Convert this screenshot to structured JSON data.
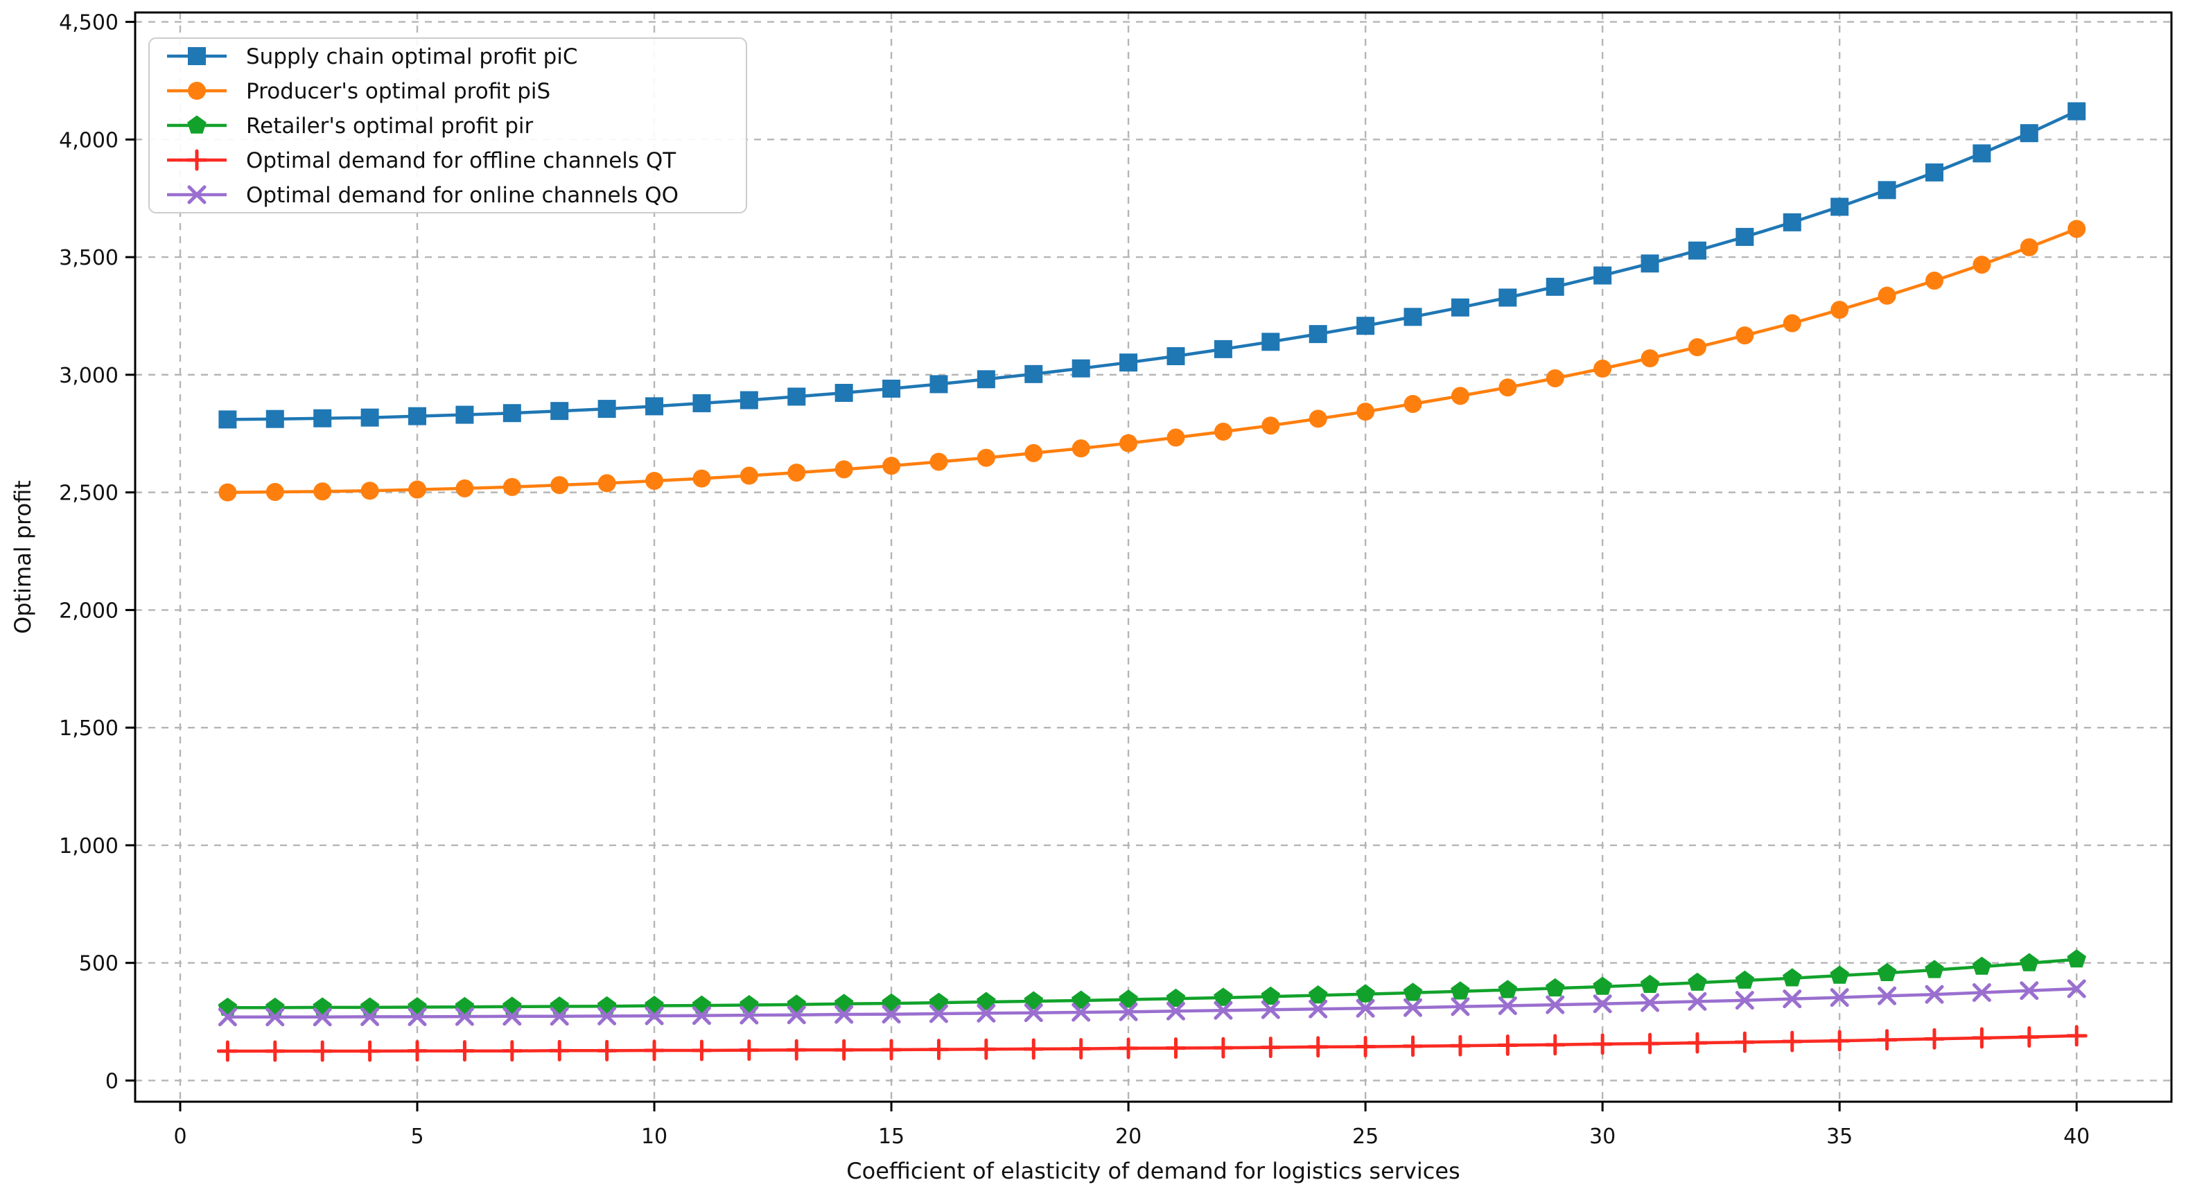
{
  "chart_data": {
    "type": "line",
    "title": "",
    "xlabel": "Coefficient of elasticity of demand for logistics services",
    "ylabel": "Optimal profit",
    "x": [
      1,
      2,
      3,
      4,
      5,
      6,
      7,
      8,
      9,
      10,
      11,
      12,
      13,
      14,
      15,
      16,
      17,
      18,
      19,
      20,
      21,
      22,
      23,
      24,
      25,
      26,
      27,
      28,
      29,
      30,
      31,
      32,
      33,
      34,
      35,
      36,
      37,
      38,
      39,
      40
    ],
    "series": [
      {
        "name": "Supply chain optimal profit piC",
        "color": "#1f77b4",
        "marker": "square",
        "values": [
          2810,
          2812,
          2815,
          2818,
          2824,
          2830,
          2837,
          2846,
          2855,
          2866,
          2879,
          2892,
          2907,
          2923,
          2941,
          2960,
          2981,
          3003,
          3027,
          3052,
          3079,
          3109,
          3140,
          3173,
          3208,
          3246,
          3286,
          3328,
          3374,
          3422,
          3473,
          3528,
          3586,
          3648,
          3714,
          3785,
          3860,
          3941,
          4027,
          4120
        ]
      },
      {
        "name": "Producer's optimal profit piS",
        "color": "#ff7f0e",
        "marker": "circle",
        "values": [
          2500,
          2502,
          2504,
          2507,
          2512,
          2517,
          2523,
          2531,
          2539,
          2549,
          2559,
          2571,
          2584,
          2598,
          2613,
          2630,
          2647,
          2667,
          2687,
          2709,
          2733,
          2758,
          2784,
          2813,
          2843,
          2876,
          2910,
          2946,
          2985,
          3026,
          3070,
          3117,
          3167,
          3219,
          3276,
          3336,
          3400,
          3468,
          3542,
          3620
        ]
      },
      {
        "name": "Retailer's optimal profit pir",
        "color": "#12a22b",
        "marker": "pentagon",
        "values": [
          310,
          310,
          311,
          311,
          312,
          313,
          314,
          315,
          316,
          318,
          319,
          321,
          323,
          326,
          328,
          331,
          334,
          337,
          340,
          344,
          348,
          352,
          357,
          362,
          367,
          373,
          379,
          385,
          392,
          399,
          407,
          416,
          425,
          435,
          446,
          457,
          470,
          484,
          499,
          515
        ]
      },
      {
        "name": "Optimal demand for offline channels QT",
        "color": "#fa2a22",
        "marker": "plus",
        "values": [
          125,
          125,
          125,
          125,
          126,
          126,
          126,
          127,
          127,
          128,
          128,
          129,
          130,
          130,
          131,
          132,
          133,
          134,
          135,
          137,
          138,
          139,
          141,
          143,
          144,
          146,
          148,
          150,
          152,
          155,
          157,
          160,
          163,
          166,
          169,
          173,
          177,
          181,
          185,
          190
        ]
      },
      {
        "name": "Optimal demand for online channels QO",
        "color": "#9a6fcf",
        "marker": "x",
        "values": [
          270,
          270,
          270,
          271,
          271,
          272,
          273,
          273,
          274,
          275,
          276,
          278,
          279,
          281,
          282,
          284,
          286,
          288,
          290,
          292,
          295,
          298,
          301,
          304,
          307,
          310,
          314,
          318,
          322,
          326,
          331,
          336,
          341,
          347,
          353,
          360,
          366,
          374,
          382,
          390
        ]
      }
    ],
    "xlim": [
      -0.95,
      42.0
    ],
    "ylim": [
      -90,
      4540
    ],
    "xticks": [
      0,
      5,
      10,
      15,
      20,
      25,
      30,
      35,
      40
    ],
    "xtick_labels": [
      "0",
      "5",
      "10",
      "15",
      "20",
      "25",
      "30",
      "35",
      "40"
    ],
    "yticks": [
      0,
      500,
      1000,
      1500,
      2000,
      2500,
      3000,
      3500,
      4000,
      4500
    ],
    "ytick_labels": [
      "0",
      "500",
      "1,000",
      "1,500",
      "2,000",
      "2,500",
      "3,000",
      "3,500",
      "4,000",
      "4,500"
    ],
    "grid": true,
    "grid_style": "dashed",
    "grid_color": "#b5b5b5",
    "legend_position": "upper left",
    "spine_color": "#000000",
    "background_color": "#ffffff"
  }
}
